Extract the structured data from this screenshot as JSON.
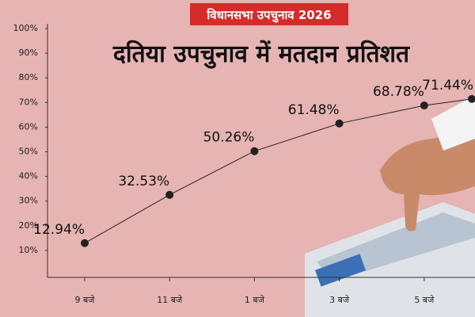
{
  "chart_data": {
    "type": "line",
    "subtitle": "विधानसभा उपचुनाव 2026",
    "title": "दतिया उपचुनाव में मतदान प्रतिशत",
    "categories": [
      "9 बजे",
      "11 बजे",
      "1 बजे",
      "3 बजे",
      "5 बजे",
      null
    ],
    "series": [
      {
        "name": "मतदान प्रतिशत",
        "color": "#222222",
        "values": [
          12.94,
          32.53,
          50.26,
          61.48,
          68.78,
          71.44
        ],
        "value_labels": [
          "12.94%",
          "32.53%",
          "50.26%",
          "61.48%",
          "68.78%",
          "71.44%"
        ]
      }
    ],
    "ylim": [
      0,
      100
    ],
    "yticks": [
      {
        "value": 10,
        "label": "10%"
      },
      {
        "value": 20,
        "label": "20%"
      },
      {
        "value": 30,
        "label": "30%"
      },
      {
        "value": 40,
        "label": "40%"
      },
      {
        "value": 50,
        "label": "50%"
      },
      {
        "value": 60,
        "label": "60%"
      },
      {
        "value": 70,
        "label": "70%"
      },
      {
        "value": 80,
        "label": "80%"
      },
      {
        "value": 90,
        "label": "90%"
      },
      {
        "value": 100,
        "label": "100%"
      }
    ]
  }
}
